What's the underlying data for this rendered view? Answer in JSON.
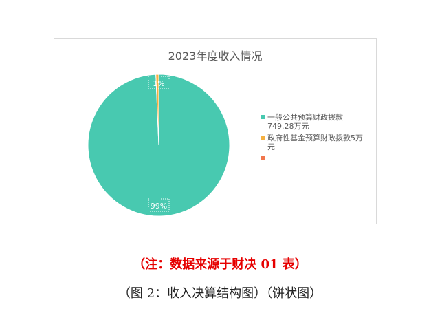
{
  "chart_data": {
    "type": "pie",
    "title": "2023年度收入情况",
    "slices": [
      {
        "name": "一般公共预算财政拨款749.28万元",
        "value": 749.28,
        "label": "99%",
        "color": "#48c9b0"
      },
      {
        "name": "政府性基金预算财政拨款5万元",
        "value": 5,
        "label": "1%",
        "color": "#f5b041"
      },
      {
        "name": "",
        "value": 0,
        "label": "",
        "color": "#f1774d"
      }
    ],
    "legend_position": "right"
  },
  "legend": [
    {
      "line1": "一般公共预算财政拨款",
      "line2": "749.28万元"
    },
    {
      "line1": "政府性基金预算财政拨款5万",
      "line2": "元"
    },
    {
      "line1": "",
      "line2": ""
    }
  ],
  "note": "（注：数据来源于财决 01 表）",
  "caption": "（图 2：收入决算结构图）（饼状图）"
}
